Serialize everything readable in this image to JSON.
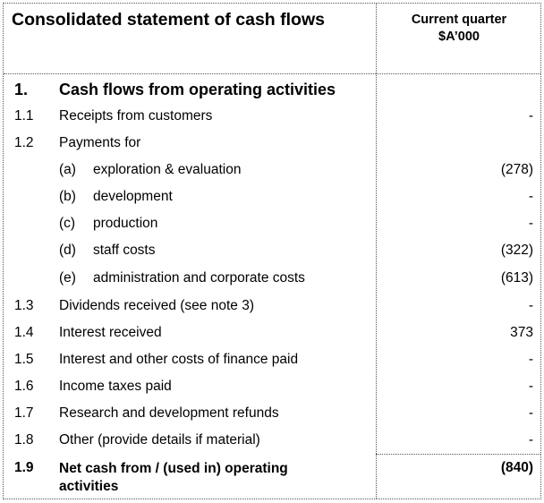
{
  "header": {
    "title": "Consolidated statement of cash flows",
    "column_line1": "Current quarter",
    "column_line2": "$A’000"
  },
  "section": {
    "number": "1.",
    "label": "Cash flows from operating activities"
  },
  "rows": [
    {
      "num": "1.1",
      "label": "Receipts from customers",
      "value": "-"
    },
    {
      "num": "1.2",
      "label": "Payments for",
      "value": ""
    },
    {
      "letter": "(a)",
      "label": "exploration & evaluation",
      "value": "(278)"
    },
    {
      "letter": "(b)",
      "label": "development",
      "value": "-"
    },
    {
      "letter": "(c)",
      "label": "production",
      "value": "-"
    },
    {
      "letter": "(d)",
      "label": "staff costs",
      "value": "(322)"
    },
    {
      "letter": "(e)",
      "label": "administration and corporate costs",
      "value": "(613)"
    },
    {
      "num": "1.3",
      "label": "Dividends received (see note 3)",
      "value": "-"
    },
    {
      "num": "1.4",
      "label": "Interest received",
      "value": "373"
    },
    {
      "num": "1.5",
      "label": "Interest and other costs of finance paid",
      "value": "-"
    },
    {
      "num": "1.6",
      "label": "Income taxes paid",
      "value": "-"
    },
    {
      "num": "1.7",
      "label": "Research and development refunds",
      "value": "-"
    },
    {
      "num": "1.8",
      "label": "Other (provide details if material)",
      "value": "-"
    }
  ],
  "total": {
    "num": "1.9",
    "label_line1": "Net cash from / (used in) operating",
    "label_line2": "activities",
    "value": "(840)"
  }
}
